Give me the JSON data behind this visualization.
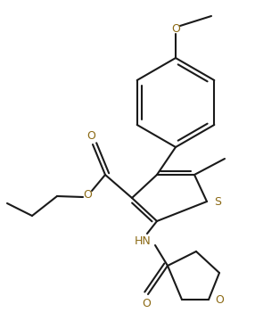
{
  "background_color": "#ffffff",
  "line_color": "#1a1a1a",
  "heteroatom_color": "#8B6914",
  "line_width": 1.5,
  "figsize": [
    2.86,
    3.6
  ],
  "dpi": 100,
  "xlim": [
    0,
    286
  ],
  "ylim": [
    0,
    360
  ]
}
